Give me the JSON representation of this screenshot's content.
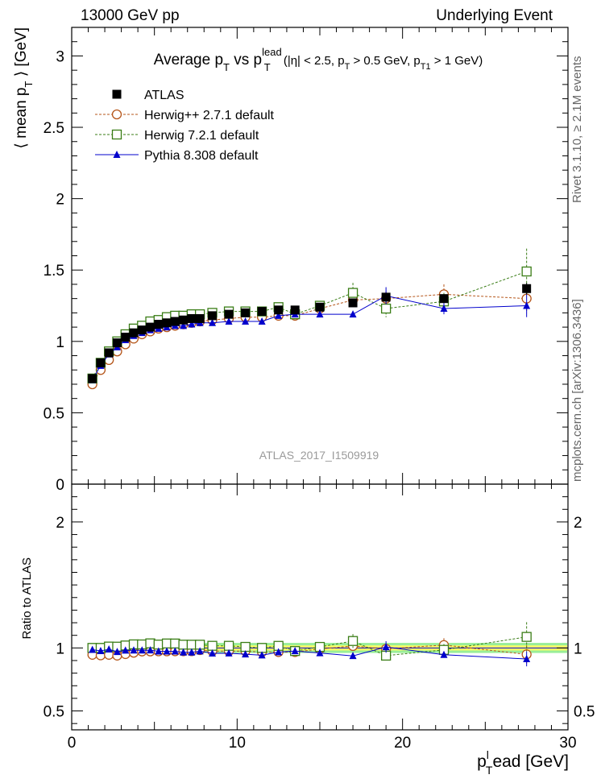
{
  "header": {
    "left": "13000 GeV pp",
    "right": "Underlying Event"
  },
  "side_labels": {
    "rivet": "Rivet 3.1.10, ≥ 2.1M events",
    "mcplots": "mcplots.cern.ch [arXiv:1306.3436]"
  },
  "watermark": "ATLAS_2017_I1509919",
  "colors": {
    "atlas": "#000000",
    "herwigpp": "#b5561a",
    "herwig7": "#3a7d16",
    "pythia": "#0000cc",
    "band_inner": "#ffff66",
    "band_outer": "#99ee99"
  },
  "chart_data": [
    {
      "type": "scatter",
      "panel": "main",
      "title_parts": {
        "t1": "Average p",
        "t1_sub": "T",
        "t2": " vs p",
        "t2_sup": "lead",
        "t2_sub": "T",
        "t3": " (|η| < 2.5, p",
        "t3_sub": "T",
        "t4": " > 0.5 GeV, p",
        "t4_sub": "T1",
        "t5": " > 1 GeV)"
      },
      "ylabel_parts": {
        "y1": "⟨ mean p",
        "y1_sub": "T",
        "y2": " ⟩ [GeV]"
      },
      "xlim": [
        0,
        30
      ],
      "ylim": [
        0,
        3.2
      ],
      "yticks": [
        "0",
        "0.5",
        "1",
        "1.5",
        "2",
        "2.5",
        "3"
      ],
      "x": [
        1.25,
        1.75,
        2.25,
        2.75,
        3.25,
        3.75,
        4.25,
        4.75,
        5.25,
        5.75,
        6.25,
        6.75,
        7.25,
        7.75,
        8.5,
        9.5,
        10.5,
        11.5,
        12.5,
        13.5,
        15.0,
        17.0,
        19.0,
        22.5,
        27.5
      ],
      "series": [
        {
          "name": "ATLAS",
          "key": "atlas",
          "marker": "square-filled",
          "values": [
            0.74,
            0.85,
            0.92,
            0.99,
            1.03,
            1.06,
            1.08,
            1.1,
            1.12,
            1.13,
            1.14,
            1.15,
            1.16,
            1.16,
            1.18,
            1.19,
            1.2,
            1.21,
            1.22,
            1.22,
            1.24,
            1.27,
            1.31,
            1.3,
            1.37
          ],
          "errors": [
            0.005,
            0.005,
            0.005,
            0.005,
            0.005,
            0.005,
            0.005,
            0.005,
            0.005,
            0.005,
            0.005,
            0.005,
            0.005,
            0.005,
            0.005,
            0.005,
            0.005,
            0.005,
            0.005,
            0.005,
            0.006,
            0.01,
            0.02,
            0.03,
            0.04
          ]
        },
        {
          "name": "Herwig++ 2.7.1 default",
          "key": "herwigpp",
          "marker": "circle-open",
          "values": [
            0.7,
            0.8,
            0.87,
            0.93,
            0.98,
            1.02,
            1.05,
            1.07,
            1.09,
            1.1,
            1.11,
            1.12,
            1.13,
            1.14,
            1.15,
            1.16,
            1.17,
            1.17,
            1.18,
            1.18,
            1.23,
            1.29,
            1.3,
            1.33,
            1.3
          ],
          "errors": [
            0.01,
            0.01,
            0.01,
            0.01,
            0.01,
            0.01,
            0.01,
            0.01,
            0.01,
            0.01,
            0.01,
            0.01,
            0.01,
            0.01,
            0.01,
            0.01,
            0.01,
            0.01,
            0.01,
            0.01,
            0.02,
            0.05,
            0.05,
            0.07,
            0.1
          ]
        },
        {
          "name": "Herwig 7.2.1 default",
          "key": "herwig7",
          "marker": "square-open",
          "values": [
            0.74,
            0.85,
            0.93,
            1.0,
            1.05,
            1.09,
            1.11,
            1.14,
            1.15,
            1.17,
            1.18,
            1.18,
            1.19,
            1.19,
            1.2,
            1.21,
            1.21,
            1.21,
            1.24,
            1.19,
            1.25,
            1.34,
            1.23,
            1.28,
            1.49
          ],
          "errors": [
            0.01,
            0.01,
            0.01,
            0.01,
            0.01,
            0.01,
            0.01,
            0.01,
            0.01,
            0.01,
            0.01,
            0.01,
            0.01,
            0.01,
            0.01,
            0.01,
            0.01,
            0.01,
            0.01,
            0.01,
            0.02,
            0.07,
            0.06,
            0.06,
            0.16
          ]
        },
        {
          "name": "Pythia 8.308 default",
          "key": "pythia",
          "marker": "triangle-filled",
          "values": [
            0.73,
            0.83,
            0.91,
            0.96,
            1.01,
            1.04,
            1.06,
            1.08,
            1.09,
            1.1,
            1.11,
            1.11,
            1.12,
            1.13,
            1.13,
            1.14,
            1.14,
            1.14,
            1.18,
            1.19,
            1.19,
            1.19,
            1.32,
            1.23,
            1.25
          ],
          "errors": [
            0.005,
            0.005,
            0.005,
            0.005,
            0.005,
            0.005,
            0.005,
            0.005,
            0.005,
            0.005,
            0.005,
            0.005,
            0.005,
            0.005,
            0.005,
            0.005,
            0.005,
            0.01,
            0.01,
            0.01,
            0.02,
            0.03,
            0.06,
            0.04,
            0.08
          ]
        }
      ]
    },
    {
      "type": "scatter",
      "panel": "ratio",
      "ylabel": "Ratio to ATLAS",
      "xlabel_parts": {
        "x1": "p",
        "x1_sup": "l",
        "x1_sub": "T",
        "x2": "ead [GeV]"
      },
      "xlim": [
        0,
        30
      ],
      "ylim": [
        0.35,
        2.3
      ],
      "xticks": [
        "0",
        "10",
        "20",
        "30"
      ],
      "yticks": [
        "0.5",
        "1",
        "2"
      ],
      "band_inner": [
        0.98,
        1.02
      ],
      "band_outer": [
        0.96,
        1.04
      ]
    }
  ]
}
